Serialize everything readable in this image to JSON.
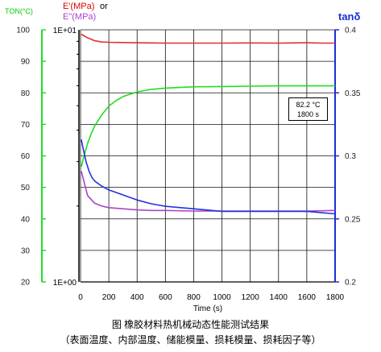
{
  "chart_data": {
    "type": "line",
    "xlabel": "Time (s)",
    "xlim": [
      0,
      1800
    ],
    "x_ticks": [
      0,
      200,
      400,
      600,
      800,
      1000,
      1200,
      1400,
      1600,
      1800
    ],
    "axes": {
      "ton": {
        "label": "TON(°C)",
        "ticks": [
          20,
          30,
          40,
          50,
          60,
          70,
          80,
          90,
          100
        ],
        "range": [
          20,
          100
        ],
        "color": "#22dd22"
      },
      "modulus": {
        "label_e1": "E'(MPa)",
        "label_or": "or",
        "label_e2": "E\"(MPa)",
        "tick_top": "1E+01",
        "tick_bottom": "1E+00",
        "range": [
          1,
          10
        ],
        "scale": "log"
      },
      "tan": {
        "label": "tanδ",
        "ticks": [
          "0.4",
          "0.35",
          "0.3",
          "0.25",
          "0.2"
        ],
        "tick_values": [
          0.4,
          0.35,
          0.3,
          0.25,
          0.2
        ],
        "range": [
          0.2,
          0.4
        ],
        "color": "#1a2fd6"
      }
    },
    "grid": true,
    "series": [
      {
        "name": "TON(°C)",
        "axis": "ton",
        "color": "#22dd22",
        "x": [
          5,
          25,
          50,
          75,
          100,
          150,
          200,
          250,
          300,
          400,
          500,
          600,
          700,
          800,
          1000,
          1200,
          1400,
          1600,
          1800
        ],
        "y": [
          56.5,
          60,
          64,
          67,
          69.5,
          73,
          75.8,
          77.5,
          78.8,
          80.3,
          81.1,
          81.5,
          81.7,
          81.9,
          82.0,
          82.1,
          82.2,
          82.2,
          82.2
        ]
      },
      {
        "name": "E'(MPa)",
        "axis": "modulus",
        "color": "#e03030",
        "x": [
          5,
          50,
          100,
          150,
          200,
          300,
          400,
          500,
          600,
          800,
          1000,
          1200,
          1400,
          1500,
          1600,
          1700,
          1800
        ],
        "y": [
          9.6,
          9.3,
          9.05,
          8.95,
          8.92,
          8.9,
          8.88,
          8.87,
          8.86,
          8.86,
          8.86,
          8.87,
          8.86,
          8.87,
          8.88,
          8.86,
          8.86
        ]
      },
      {
        "name": "E\"(MPa)",
        "axis": "modulus",
        "color": "#aa44cc",
        "x": [
          5,
          50,
          100,
          150,
          200,
          300,
          400,
          500,
          600,
          800,
          1000,
          1200,
          1400,
          1600,
          1800
        ],
        "y": [
          2.75,
          2.2,
          2.05,
          2.0,
          1.97,
          1.95,
          1.93,
          1.92,
          1.92,
          1.91,
          1.91,
          1.91,
          1.91,
          1.91,
          1.92
        ]
      },
      {
        "name": "tanδ",
        "axis": "tan",
        "color": "#2233dd",
        "x": [
          5,
          20,
          40,
          60,
          80,
          100,
          150,
          200,
          250,
          300,
          400,
          500,
          600,
          700,
          800,
          900,
          1000,
          1200,
          1400,
          1600,
          1700,
          1800
        ],
        "y": [
          0.313,
          0.305,
          0.295,
          0.288,
          0.283,
          0.28,
          0.276,
          0.273,
          0.271,
          0.269,
          0.265,
          0.262,
          0.26,
          0.259,
          0.258,
          0.257,
          0.256,
          0.256,
          0.256,
          0.256,
          0.255,
          0.254
        ]
      }
    ],
    "annotation": {
      "line1": "82.2 °C",
      "line2": "1800  s",
      "placement": "upper-right"
    }
  },
  "caption": {
    "line1": "图  橡胶材料热机械动态性能测试结果",
    "line2": "（表面温度、内部温度、储能模量、损耗模量、损耗因子等）"
  }
}
